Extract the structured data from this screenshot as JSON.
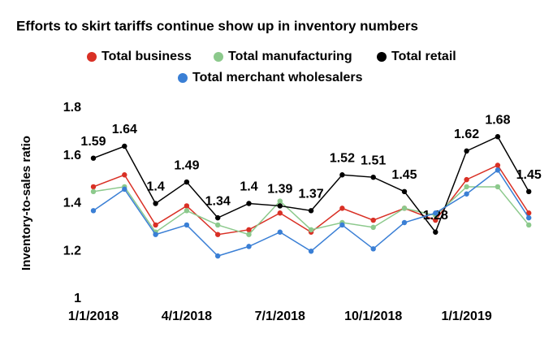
{
  "chart_data": {
    "type": "line",
    "title": "Efforts to skirt tariffs continue show up in inventory numbers",
    "y_label": "Inventory-to-sales ratio",
    "categories": [
      "1/1/2018",
      null,
      null,
      "4/1/2018",
      null,
      null,
      "7/1/2018",
      null,
      null,
      "10/1/2018",
      null,
      null,
      "1/1/2019",
      null,
      null
    ],
    "series": [
      {
        "name": "Total business",
        "color": "#d93025",
        "values": [
          1.47,
          1.52,
          1.31,
          1.39,
          1.27,
          1.29,
          1.36,
          1.28,
          1.38,
          1.33,
          1.38,
          1.33,
          1.5,
          1.56,
          1.36
        ]
      },
      {
        "name": "Total manufacturing",
        "color": "#8cc98c",
        "values": [
          1.45,
          1.47,
          1.28,
          1.37,
          1.31,
          1.27,
          1.41,
          1.29,
          1.32,
          1.3,
          1.38,
          1.35,
          1.47,
          1.47,
          1.31
        ]
      },
      {
        "name": "Total retail",
        "color": "#000000",
        "show_labels": true,
        "values": [
          1.59,
          1.64,
          1.4,
          1.49,
          1.34,
          1.4,
          1.39,
          1.37,
          1.52,
          1.51,
          1.45,
          1.28,
          1.62,
          1.68,
          1.45
        ]
      },
      {
        "name": "Total merchant wholesalers",
        "color": "#3a7fd5",
        "values": [
          1.37,
          1.46,
          1.27,
          1.31,
          1.18,
          1.22,
          1.28,
          1.2,
          1.31,
          1.21,
          1.32,
          1.36,
          1.44,
          1.54,
          1.34
        ]
      }
    ],
    "ylim": [
      1,
      1.8
    ],
    "yticks": [
      1,
      1.2,
      1.4,
      1.6,
      1.8
    ],
    "grid": false
  }
}
